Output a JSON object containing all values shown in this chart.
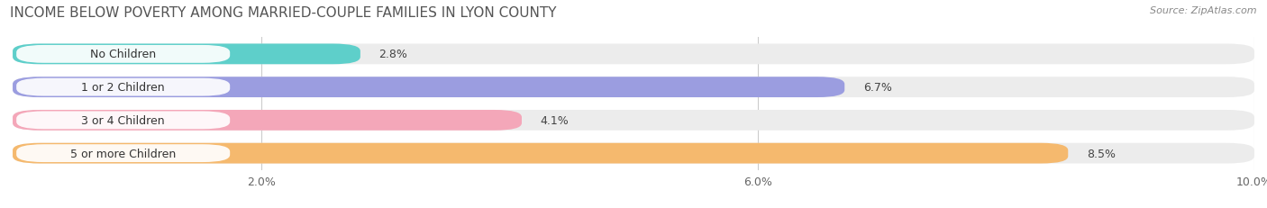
{
  "title": "INCOME BELOW POVERTY AMONG MARRIED-COUPLE FAMILIES IN LYON COUNTY",
  "source": "Source: ZipAtlas.com",
  "categories": [
    "No Children",
    "1 or 2 Children",
    "3 or 4 Children",
    "5 or more Children"
  ],
  "values": [
    2.8,
    6.7,
    4.1,
    8.5
  ],
  "bar_colors": [
    "#5ecfca",
    "#9b9de0",
    "#f4a7b9",
    "#f5b96e"
  ],
  "bg_bar_color": "#ececec",
  "xlim": [
    0,
    10.0
  ],
  "xticks": [
    2.0,
    6.0,
    10.0
  ],
  "xticklabels": [
    "2.0%",
    "6.0%",
    "10.0%"
  ],
  "background_color": "#ffffff",
  "title_fontsize": 11,
  "bar_label_fontsize": 9,
  "category_fontsize": 9,
  "tick_fontsize": 9,
  "bar_height": 0.62,
  "bar_spacing": 1.0
}
